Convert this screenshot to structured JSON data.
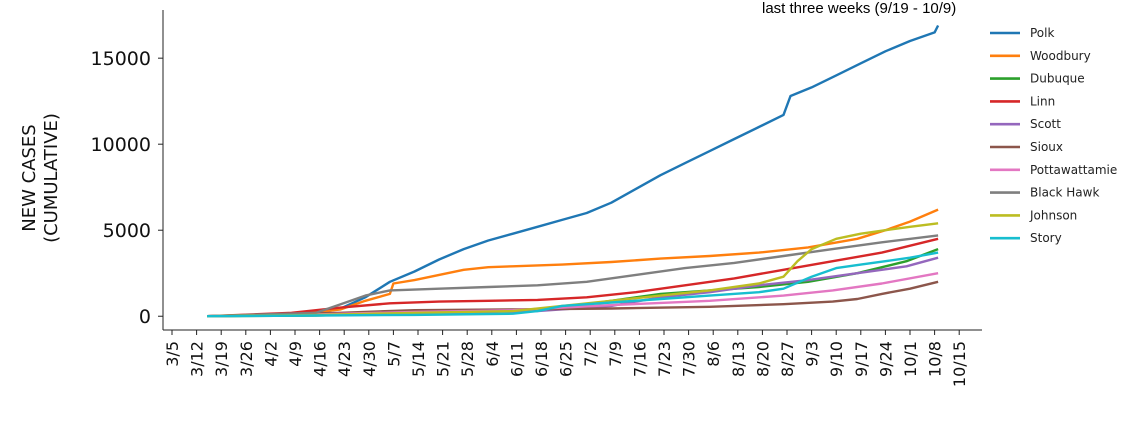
{
  "chart_data": {
    "type": "line",
    "title": "last three weeks (9/19 - 10/9)",
    "xlabel": "",
    "ylabel_lines": [
      "NEW CASES",
      "(CUMULATIVE)"
    ],
    "x_tick_labels": [
      "3/5",
      "3/12",
      "3/19",
      "3/26",
      "4/2",
      "4/9",
      "4/16",
      "4/23",
      "4/30",
      "5/7",
      "5/14",
      "5/21",
      "5/28",
      "6/4",
      "6/11",
      "6/18",
      "6/25",
      "7/2",
      "7/9",
      "7/16",
      "7/23",
      "7/30",
      "8/6",
      "8/13",
      "8/20",
      "8/27",
      "9/3",
      "9/10",
      "9/17",
      "9/24",
      "10/1",
      "10/8",
      "10/15"
    ],
    "y_ticks": [
      0,
      5000,
      10000,
      15000
    ],
    "ylim": [
      -800,
      17800
    ],
    "legend_position": "right",
    "series": [
      {
        "name": "Polk",
        "color": "#1f77b4",
        "points": [
          [
            "3/15",
            0
          ],
          [
            "4/1",
            40
          ],
          [
            "4/15",
            150
          ],
          [
            "4/22",
            450
          ],
          [
            "4/29",
            1100
          ],
          [
            "5/6",
            2000
          ],
          [
            "5/13",
            2600
          ],
          [
            "5/20",
            3300
          ],
          [
            "5/27",
            3900
          ],
          [
            "6/3",
            4400
          ],
          [
            "6/10",
            4800
          ],
          [
            "6/17",
            5200
          ],
          [
            "6/24",
            5600
          ],
          [
            "7/1",
            6000
          ],
          [
            "7/8",
            6600
          ],
          [
            "7/15",
            7400
          ],
          [
            "7/22",
            8200
          ],
          [
            "7/29",
            8900
          ],
          [
            "8/5",
            9600
          ],
          [
            "8/12",
            10300
          ],
          [
            "8/19",
            11000
          ],
          [
            "8/26",
            11700
          ],
          [
            "8/28",
            12800
          ],
          [
            "9/3",
            13300
          ],
          [
            "9/10",
            14000
          ],
          [
            "9/17",
            14700
          ],
          [
            "9/24",
            15400
          ],
          [
            "10/1",
            16000
          ],
          [
            "10/8",
            16500
          ],
          [
            "10/9",
            16900
          ]
        ]
      },
      {
        "name": "Woodbury",
        "color": "#ff7f0e",
        "points": [
          [
            "3/15",
            0
          ],
          [
            "4/8",
            80
          ],
          [
            "4/22",
            400
          ],
          [
            "4/29",
            900
          ],
          [
            "5/6",
            1300
          ],
          [
            "5/7",
            1900
          ],
          [
            "5/13",
            2100
          ],
          [
            "5/20",
            2400
          ],
          [
            "5/27",
            2700
          ],
          [
            "6/3",
            2850
          ],
          [
            "6/10",
            2900
          ],
          [
            "6/24",
            3000
          ],
          [
            "7/8",
            3150
          ],
          [
            "7/22",
            3350
          ],
          [
            "8/5",
            3500
          ],
          [
            "8/19",
            3700
          ],
          [
            "9/2",
            4000
          ],
          [
            "9/16",
            4500
          ],
          [
            "9/24",
            5000
          ],
          [
            "10/1",
            5500
          ],
          [
            "10/9",
            6200
          ]
        ]
      },
      {
        "name": "Dubuque",
        "color": "#2ca02c",
        "points": [
          [
            "3/15",
            0
          ],
          [
            "4/15",
            40
          ],
          [
            "5/6",
            150
          ],
          [
            "6/3",
            250
          ],
          [
            "6/24",
            500
          ],
          [
            "7/8",
            900
          ],
          [
            "7/22",
            1300
          ],
          [
            "8/5",
            1500
          ],
          [
            "8/19",
            1700
          ],
          [
            "9/2",
            2000
          ],
          [
            "9/16",
            2500
          ],
          [
            "9/30",
            3200
          ],
          [
            "10/9",
            3900
          ]
        ]
      },
      {
        "name": "Linn",
        "color": "#d62728",
        "points": [
          [
            "3/15",
            0
          ],
          [
            "4/8",
            200
          ],
          [
            "4/22",
            500
          ],
          [
            "5/6",
            750
          ],
          [
            "5/20",
            850
          ],
          [
            "6/3",
            900
          ],
          [
            "6/17",
            950
          ],
          [
            "7/1",
            1100
          ],
          [
            "7/15",
            1400
          ],
          [
            "7/29",
            1800
          ],
          [
            "8/12",
            2200
          ],
          [
            "8/26",
            2700
          ],
          [
            "9/9",
            3200
          ],
          [
            "9/23",
            3700
          ],
          [
            "10/9",
            4500
          ]
        ]
      },
      {
        "name": "Scott",
        "color": "#9467bd",
        "points": [
          [
            "3/15",
            0
          ],
          [
            "4/22",
            100
          ],
          [
            "5/20",
            200
          ],
          [
            "6/17",
            300
          ],
          [
            "7/8",
            600
          ],
          [
            "7/22",
            1100
          ],
          [
            "8/5",
            1400
          ],
          [
            "8/19",
            1800
          ],
          [
            "9/2",
            2100
          ],
          [
            "9/16",
            2500
          ],
          [
            "9/30",
            2900
          ],
          [
            "10/9",
            3400
          ]
        ]
      },
      {
        "name": "Sioux",
        "color": "#8c564b",
        "points": [
          [
            "3/15",
            0
          ],
          [
            "4/22",
            200
          ],
          [
            "5/13",
            350
          ],
          [
            "6/10",
            400
          ],
          [
            "7/8",
            450
          ],
          [
            "8/5",
            550
          ],
          [
            "8/26",
            700
          ],
          [
            "9/9",
            850
          ],
          [
            "9/16",
            1000
          ],
          [
            "9/23",
            1300
          ],
          [
            "10/1",
            1600
          ],
          [
            "10/9",
            2000
          ]
        ]
      },
      {
        "name": "Pottawattamie",
        "color": "#e377c2",
        "points": [
          [
            "3/15",
            0
          ],
          [
            "4/15",
            100
          ],
          [
            "5/13",
            250
          ],
          [
            "6/10",
            350
          ],
          [
            "7/8",
            650
          ],
          [
            "8/5",
            900
          ],
          [
            "8/26",
            1200
          ],
          [
            "9/9",
            1500
          ],
          [
            "9/23",
            1900
          ],
          [
            "10/9",
            2500
          ]
        ]
      },
      {
        "name": "Black Hawk",
        "color": "#7f7f7f",
        "points": [
          [
            "3/15",
            0
          ],
          [
            "4/15",
            200
          ],
          [
            "4/22",
            700
          ],
          [
            "4/29",
            1200
          ],
          [
            "5/6",
            1500
          ],
          [
            "5/20",
            1600
          ],
          [
            "6/3",
            1700
          ],
          [
            "6/17",
            1800
          ],
          [
            "7/1",
            2000
          ],
          [
            "7/15",
            2400
          ],
          [
            "7/29",
            2800
          ],
          [
            "8/12",
            3100
          ],
          [
            "8/26",
            3500
          ],
          [
            "9/9",
            3900
          ],
          [
            "9/23",
            4300
          ],
          [
            "10/9",
            4700
          ]
        ]
      },
      {
        "name": "Johnson",
        "color": "#bcbd22",
        "points": [
          [
            "3/15",
            0
          ],
          [
            "4/15",
            80
          ],
          [
            "5/13",
            200
          ],
          [
            "6/10",
            300
          ],
          [
            "6/24",
            600
          ],
          [
            "7/8",
            900
          ],
          [
            "7/22",
            1200
          ],
          [
            "8/5",
            1500
          ],
          [
            "8/19",
            1900
          ],
          [
            "8/26",
            2300
          ],
          [
            "8/30",
            3200
          ],
          [
            "9/3",
            3900
          ],
          [
            "9/10",
            4500
          ],
          [
            "9/17",
            4800
          ],
          [
            "9/24",
            5000
          ],
          [
            "10/1",
            5200
          ],
          [
            "10/9",
            5400
          ]
        ]
      },
      {
        "name": "Story",
        "color": "#17becf",
        "points": [
          [
            "3/15",
            0
          ],
          [
            "4/15",
            40
          ],
          [
            "5/13",
            80
          ],
          [
            "6/10",
            150
          ],
          [
            "6/17",
            300
          ],
          [
            "6/24",
            600
          ],
          [
            "7/8",
            800
          ],
          [
            "7/22",
            1000
          ],
          [
            "8/5",
            1200
          ],
          [
            "8/19",
            1400
          ],
          [
            "8/26",
            1600
          ],
          [
            "9/3",
            2300
          ],
          [
            "9/10",
            2800
          ],
          [
            "9/17",
            3000
          ],
          [
            "9/24",
            3200
          ],
          [
            "10/1",
            3400
          ],
          [
            "10/9",
            3700
          ]
        ]
      }
    ]
  }
}
